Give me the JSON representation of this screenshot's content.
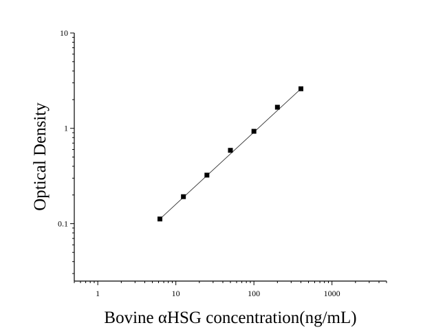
{
  "chart_data": {
    "type": "scatter",
    "xlabel": "Bovine αHSG concentration(ng/mL)",
    "ylabel": "Optical Density",
    "xscale": "log",
    "yscale": "log",
    "xlim": [
      0.5,
      5000
    ],
    "ylim": [
      0.025,
      10
    ],
    "x_ticks": [
      1,
      10,
      100,
      1000
    ],
    "x_tick_labels": [
      "1",
      "10",
      "100",
      "1000"
    ],
    "y_ticks": [
      0.1,
      1,
      10
    ],
    "y_tick_labels": [
      "0.1",
      "1",
      "10"
    ],
    "grid": false,
    "legend": "none",
    "marker": "square",
    "marker_color": "#000000",
    "line_color": "#333333",
    "series": [
      {
        "x": [
          6.25,
          12.5,
          25,
          50,
          100,
          200,
          400
        ],
        "y": [
          0.112,
          0.192,
          0.323,
          0.588,
          0.931,
          1.665,
          2.6
        ]
      }
    ],
    "fit_line": {
      "x": [
        6.25,
        400
      ],
      "y": [
        0.112,
        2.6
      ]
    }
  }
}
